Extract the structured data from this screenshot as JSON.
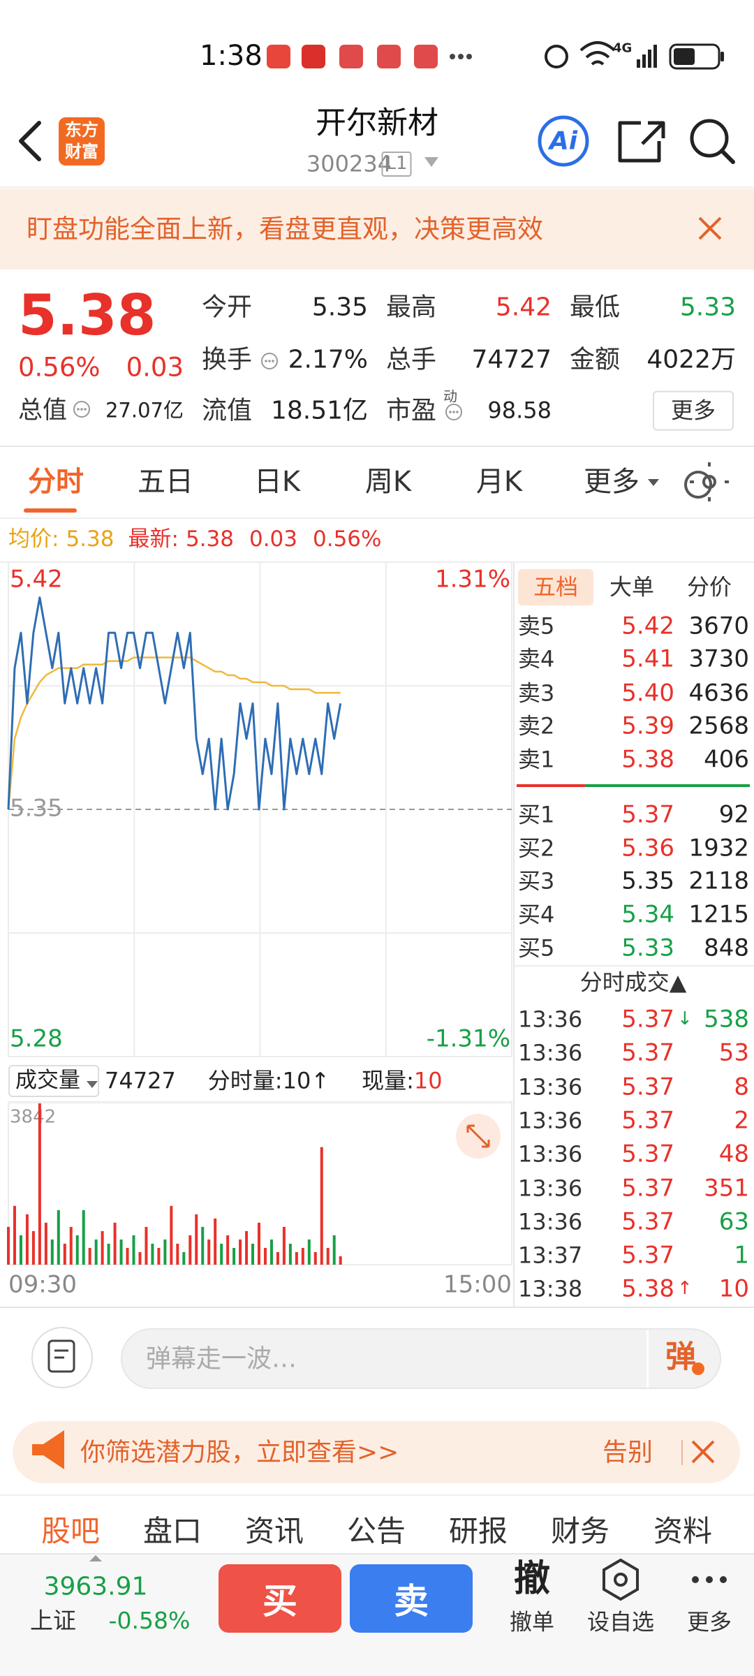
{
  "status_bar": {
    "time": "1:38",
    "network": "4G"
  },
  "header": {
    "logo": [
      "东方",
      "财富"
    ],
    "title": "开尔新材",
    "code": "300234",
    "level": "L1",
    "ai": "Ai"
  },
  "banner": {
    "text": "盯盘功能全面上新，看盘更直观，决策更高效"
  },
  "quote": {
    "price": "5.38",
    "change_pct": "0.56%",
    "change": "0.03",
    "total_cap_label": "总值",
    "total_cap": "27.07亿",
    "stats": [
      [
        {
          "label": "今开",
          "value": "5.35",
          "color": "#222222"
        },
        {
          "label": "最高",
          "value": "5.42",
          "color": "#e8312a"
        },
        {
          "label": "最低",
          "value": "5.33",
          "color": "#17a046"
        }
      ],
      [
        {
          "label": "换手",
          "value": "2.17%",
          "color": "#222222",
          "info_icon": true
        },
        {
          "label": "总手",
          "value": "74727",
          "color": "#222222"
        },
        {
          "label": "金额",
          "value": "4022万",
          "color": "#222222"
        }
      ],
      [
        {
          "label": "流值",
          "value": "18.51亿",
          "color": "#222222"
        },
        {
          "label": "市盈",
          "sup": "动",
          "value": "98.58",
          "color": "#222222",
          "info_icon": true
        }
      ]
    ],
    "more": "更多"
  },
  "tabs": {
    "items": [
      "分时",
      "五日",
      "日K",
      "周K",
      "月K",
      "更多"
    ],
    "active": 0
  },
  "info_line": {
    "avg_label": "均价:",
    "avg": "5.38",
    "last_label": "最新:",
    "last": "5.38",
    "change": "0.03",
    "change_pct": "0.56%"
  },
  "chart_data": [
    {
      "type": "line",
      "xlim": [
        0,
        241
      ],
      "x": [
        0,
        3,
        6,
        9,
        12,
        15,
        18,
        21,
        24,
        27,
        30,
        33,
        36,
        39,
        42,
        45,
        48,
        51,
        54,
        57,
        60,
        63,
        66,
        69,
        72,
        75,
        78,
        81,
        84,
        87,
        90,
        93,
        96,
        99,
        102,
        105,
        108,
        111,
        114,
        117,
        120,
        123,
        126,
        129,
        132,
        135,
        138,
        141,
        144,
        147,
        150,
        153,
        156,
        159
      ],
      "series": [
        {
          "color": "#2e6db5",
          "values": [
            5.35,
            5.39,
            5.4,
            5.38,
            5.4,
            5.41,
            5.4,
            5.39,
            5.4,
            5.38,
            5.39,
            5.38,
            5.39,
            5.38,
            5.39,
            5.38,
            5.4,
            5.4,
            5.39,
            5.4,
            5.4,
            5.39,
            5.4,
            5.4,
            5.39,
            5.38,
            5.39,
            5.4,
            5.39,
            5.4,
            5.37,
            5.36,
            5.37,
            5.35,
            5.37,
            5.35,
            5.36,
            5.38,
            5.37,
            5.38,
            5.35,
            5.37,
            5.36,
            5.38,
            5.35,
            5.37,
            5.36,
            5.37,
            5.36,
            5.37,
            5.36,
            5.38,
            5.37,
            5.38
          ]
        },
        {
          "color": "#f0b83a",
          "values": [
            5.35,
            5.37,
            5.376,
            5.38,
            5.383,
            5.386,
            5.388,
            5.389,
            5.39,
            5.39,
            5.39,
            5.39,
            5.391,
            5.391,
            5.391,
            5.391,
            5.392,
            5.392,
            5.392,
            5.392,
            5.393,
            5.393,
            5.393,
            5.393,
            5.393,
            5.393,
            5.393,
            5.393,
            5.393,
            5.393,
            5.392,
            5.391,
            5.39,
            5.389,
            5.389,
            5.388,
            5.388,
            5.387,
            5.387,
            5.386,
            5.386,
            5.386,
            5.385,
            5.385,
            5.385,
            5.384,
            5.384,
            5.384,
            5.384,
            5.383,
            5.383,
            5.383,
            5.383,
            5.383
          ]
        }
      ],
      "ylim": [
        5.28,
        5.42
      ],
      "yticks": [
        5.42,
        5.35,
        5.28
      ],
      "ytick_colors": [
        "#e8312a",
        "#999999",
        "#17a046"
      ],
      "y2lim": [
        -1.31,
        1.31
      ],
      "y2ticks": [
        {
          "value": 1.31,
          "label": "1.31%"
        },
        {
          "value": -1.31,
          "label": "-1.31%"
        }
      ],
      "y2tick_colors": [
        "#e8312a",
        "#17a046"
      ],
      "grid": true
    },
    {
      "type": "bar",
      "xlim": [
        0,
        241
      ],
      "x": [
        0,
        3,
        6,
        9,
        12,
        15,
        18,
        21,
        24,
        27,
        30,
        33,
        36,
        39,
        42,
        45,
        48,
        51,
        54,
        57,
        60,
        63,
        66,
        69,
        72,
        75,
        78,
        81,
        84,
        87,
        90,
        93,
        96,
        99,
        102,
        105,
        108,
        111,
        114,
        117,
        120,
        123,
        126,
        129,
        132,
        135,
        138,
        141,
        144,
        147,
        150,
        153,
        156,
        159
      ],
      "xticks": [
        {
          "value": 0,
          "label": "09:30"
        },
        {
          "value": 241,
          "label": "15:00"
        }
      ],
      "series": [
        {
          "color": "#e8312a",
          "values": [
            900,
            1400,
            null,
            1200,
            800,
            3842,
            1000,
            null,
            null,
            500,
            900,
            null,
            null,
            400,
            null,
            800,
            null,
            1000,
            null,
            400,
            null,
            300,
            900,
            null,
            400,
            null,
            1400,
            500,
            null,
            700,
            1200,
            null,
            600,
            1100,
            null,
            700,
            null,
            600,
            800,
            null,
            1000,
            400,
            null,
            300,
            900,
            null,
            300,
            400,
            null,
            300,
            2800,
            400,
            null,
            200
          ]
        },
        {
          "color": "#17a046",
          "values": [
            null,
            null,
            700,
            null,
            null,
            null,
            null,
            600,
            1300,
            null,
            null,
            700,
            1300,
            null,
            600,
            null,
            500,
            null,
            600,
            null,
            700,
            null,
            null,
            500,
            null,
            600,
            null,
            null,
            300,
            null,
            null,
            900,
            null,
            null,
            500,
            null,
            400,
            null,
            null,
            500,
            null,
            null,
            600,
            null,
            null,
            500,
            null,
            null,
            600,
            null,
            null,
            null,
            700,
            null
          ]
        }
      ],
      "ylim": [
        0,
        3842
      ],
      "yticks": [
        3842
      ]
    }
  ],
  "volume_header": {
    "label": "成交量",
    "total": "74727",
    "minute_label": "分时量:",
    "minute_value": "10",
    "minute_arrow": "↑",
    "current_label": "现量:",
    "current_value": "10"
  },
  "order_book": {
    "tabs": [
      "五档",
      "大单",
      "分价"
    ],
    "active": 0,
    "asks": [
      {
        "label": "卖5",
        "price": "5.42",
        "volume": "3670",
        "price_color": "#e8312a"
      },
      {
        "label": "卖4",
        "price": "5.41",
        "volume": "3730",
        "price_color": "#e8312a"
      },
      {
        "label": "卖3",
        "price": "5.40",
        "volume": "4636",
        "price_color": "#e8312a"
      },
      {
        "label": "卖2",
        "price": "5.39",
        "volume": "2568",
        "price_color": "#e8312a"
      },
      {
        "label": "卖1",
        "price": "5.38",
        "volume": "406",
        "price_color": "#e8312a"
      }
    ],
    "bids": [
      {
        "label": "买1",
        "price": "5.37",
        "volume": "92",
        "price_color": "#e8312a"
      },
      {
        "label": "买2",
        "price": "5.36",
        "volume": "1932",
        "price_color": "#e8312a"
      },
      {
        "label": "买3",
        "price": "5.35",
        "volume": "2118",
        "price_color": "#222222"
      },
      {
        "label": "买4",
        "price": "5.34",
        "volume": "1215",
        "price_color": "#17a046"
      },
      {
        "label": "买5",
        "price": "5.33",
        "volume": "848",
        "price_color": "#17a046"
      }
    ],
    "trades_title": "分时成交▲",
    "trades": [
      {
        "time": "13:36",
        "price": "5.37",
        "arrow": "↓",
        "arrow_color": "#17a046",
        "volume": "538",
        "volume_color": "#17a046"
      },
      {
        "time": "13:36",
        "price": "5.37",
        "volume": "53",
        "volume_color": "#e8312a"
      },
      {
        "time": "13:36",
        "price": "5.37",
        "volume": "8",
        "volume_color": "#e8312a"
      },
      {
        "time": "13:36",
        "price": "5.37",
        "volume": "2",
        "volume_color": "#e8312a"
      },
      {
        "time": "13:36",
        "price": "5.37",
        "volume": "48",
        "volume_color": "#e8312a"
      },
      {
        "time": "13:36",
        "price": "5.37",
        "volume": "351",
        "volume_color": "#e8312a"
      },
      {
        "time": "13:36",
        "price": "5.37",
        "volume": "63",
        "volume_color": "#17a046"
      },
      {
        "time": "13:37",
        "price": "5.37",
        "volume": "1",
        "volume_color": "#17a046"
      },
      {
        "time": "13:38",
        "price": "5.38",
        "arrow": "↑",
        "arrow_color": "#e8312a",
        "volume": "10",
        "volume_color": "#e8312a"
      }
    ]
  },
  "comment_bar": {
    "placeholder": "弹幕走一波…",
    "send": "弹"
  },
  "ad": {
    "text": "你筛选潜力股，立即查看>>",
    "dismiss": "告别"
  },
  "bottom_tabs": {
    "items": [
      "股吧",
      "盘口",
      "资讯",
      "公告",
      "研报",
      "财务",
      "资料"
    ],
    "active": 0
  },
  "footer": {
    "index_value": "3963.91",
    "index_name": "上证",
    "index_change": "-0.58%",
    "buy": "买",
    "sell": "卖",
    "cancel_icon": "撤",
    "cancel": "撤单",
    "watchlist": "设自选",
    "more": "更多"
  }
}
